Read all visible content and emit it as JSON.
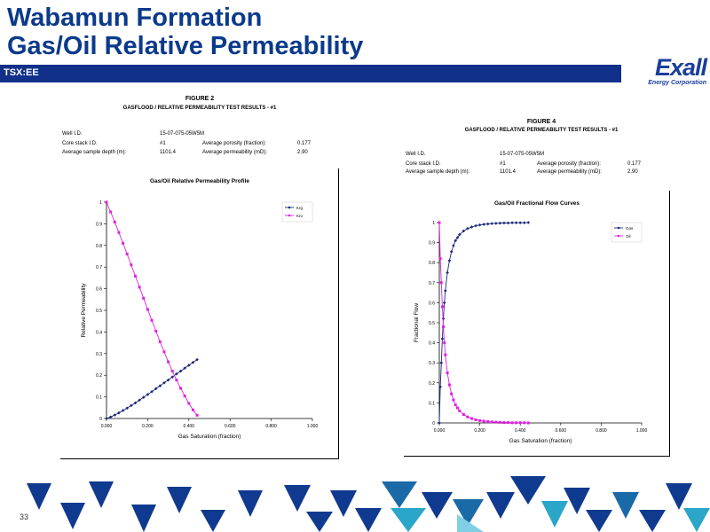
{
  "slide": {
    "title_line1": "Wabamun Formation",
    "title_line2": "Gas/Oil Relative Permeability",
    "ticker": "TSX:EE",
    "logo_main": "Exall",
    "logo_sub": "Energy Corporation",
    "page_number": "33"
  },
  "figure2": {
    "figure_label": "FIGURE 2",
    "test_title": "GASFLOOD / RELATIVE PERMEABILITY TEST RESULTS - #1",
    "well_id_label": "Well I.D.",
    "well_id": "15-07-075-05W5M",
    "core_stack_label": "Core stack I.D.",
    "core_stack": "#1",
    "avg_porosity_label": "Average porosity (fraction):",
    "avg_porosity": "0.177",
    "avg_depth_label": "Average sample depth (m):",
    "avg_depth": "1101.4",
    "avg_perm_label": "Average permeability (mD):",
    "avg_perm": "2.90"
  },
  "figure4": {
    "figure_label": "FIGURE 4",
    "test_title": "GASFLOOD / RELATIVE PERMEABILITY TEST RESULTS - #1",
    "well_id_label": "Well I.D.",
    "well_id": "15-07-075-05W5M",
    "core_stack_label": "Core stack I.D.",
    "core_stack": "#1",
    "avg_porosity_label": "Average porosity (fraction):",
    "avg_porosity": "0.177",
    "avg_depth_label": "Average sample depth (m):",
    "avg_depth": "1101.4",
    "avg_perm_label": "Average permeability (mD):",
    "avg_perm": "2.90"
  },
  "chart_data": [
    {
      "type": "line",
      "title": "Gas/Oil Relative Permeability Profile",
      "xlabel": "Gas Saturation (fraction)",
      "ylabel": "Relative Permeability",
      "xlim": [
        0,
        1
      ],
      "ylim": [
        0,
        1
      ],
      "x_ticks": [
        "0.000",
        "0.200",
        "0.400",
        "0.600",
        "0.800",
        "1.000"
      ],
      "y_ticks": [
        "0",
        "0.1",
        "0.2",
        "0.3",
        "0.4",
        "0.5",
        "0.6",
        "0.7",
        "0.8",
        "0.9",
        "1"
      ],
      "legend_position": "top-right",
      "grid": false,
      "series": [
        {
          "name": "Krg",
          "color": "#1c2a7a",
          "x": [
            0.0,
            0.02,
            0.04,
            0.06,
            0.08,
            0.1,
            0.12,
            0.14,
            0.16,
            0.18,
            0.2,
            0.22,
            0.24,
            0.26,
            0.28,
            0.3,
            0.32,
            0.34,
            0.36,
            0.38,
            0.4,
            0.42,
            0.44
          ],
          "y": [
            0.0,
            0.007,
            0.016,
            0.026,
            0.037,
            0.048,
            0.06,
            0.072,
            0.085,
            0.098,
            0.111,
            0.124,
            0.138,
            0.151,
            0.165,
            0.178,
            0.192,
            0.206,
            0.219,
            0.233,
            0.246,
            0.259,
            0.272
          ]
        },
        {
          "name": "Kro",
          "color": "#e020e0",
          "x": [
            0.0,
            0.02,
            0.04,
            0.06,
            0.08,
            0.1,
            0.12,
            0.14,
            0.16,
            0.18,
            0.2,
            0.22,
            0.24,
            0.26,
            0.28,
            0.3,
            0.32,
            0.34,
            0.36,
            0.38,
            0.4,
            0.42,
            0.44
          ],
          "y": [
            1.0,
            0.955,
            0.908,
            0.86,
            0.81,
            0.76,
            0.71,
            0.658,
            0.607,
            0.556,
            0.504,
            0.454,
            0.404,
            0.355,
            0.308,
            0.262,
            0.219,
            0.178,
            0.14,
            0.104,
            0.07,
            0.04,
            0.015
          ]
        }
      ]
    },
    {
      "type": "line",
      "title": "Gas/Oil Fractional Flow Curves",
      "xlabel": "Gas Saturation (fraction)",
      "ylabel": "Fractional Flow",
      "xlim": [
        0,
        1
      ],
      "ylim": [
        0,
        1
      ],
      "x_ticks": [
        "0.000",
        "0.200",
        "0.400",
        "0.600",
        "0.800",
        "1.000"
      ],
      "y_ticks": [
        "0",
        "0.1",
        "0.2",
        "0.3",
        "0.4",
        "0.5",
        "0.6",
        "0.7",
        "0.8",
        "0.9",
        "1"
      ],
      "legend_position": "top-right",
      "grid": false,
      "series": [
        {
          "name": "Gas",
          "color": "#1c2a7a",
          "x": [
            0.0,
            0.005,
            0.01,
            0.015,
            0.02,
            0.025,
            0.03,
            0.04,
            0.05,
            0.06,
            0.07,
            0.08,
            0.09,
            0.1,
            0.12,
            0.14,
            0.16,
            0.18,
            0.2,
            0.22,
            0.24,
            0.26,
            0.28,
            0.3,
            0.32,
            0.34,
            0.36,
            0.38,
            0.4,
            0.42,
            0.44
          ],
          "y": [
            0.0,
            0.18,
            0.3,
            0.42,
            0.52,
            0.6,
            0.66,
            0.75,
            0.81,
            0.855,
            0.885,
            0.91,
            0.925,
            0.94,
            0.958,
            0.97,
            0.978,
            0.984,
            0.988,
            0.991,
            0.993,
            0.995,
            0.996,
            0.997,
            0.998,
            0.998,
            0.999,
            0.999,
            0.999,
            0.999,
            1.0
          ]
        },
        {
          "name": "Oil",
          "color": "#e020e0",
          "x": [
            0.0,
            0.005,
            0.01,
            0.015,
            0.02,
            0.025,
            0.03,
            0.04,
            0.05,
            0.06,
            0.07,
            0.08,
            0.09,
            0.1,
            0.12,
            0.14,
            0.16,
            0.18,
            0.2,
            0.22,
            0.24,
            0.26,
            0.28,
            0.3,
            0.32,
            0.34,
            0.36,
            0.38,
            0.4,
            0.42,
            0.44
          ],
          "y": [
            1.0,
            0.82,
            0.7,
            0.58,
            0.48,
            0.4,
            0.34,
            0.25,
            0.19,
            0.145,
            0.115,
            0.09,
            0.075,
            0.06,
            0.042,
            0.03,
            0.022,
            0.016,
            0.012,
            0.009,
            0.007,
            0.005,
            0.004,
            0.003,
            0.002,
            0.002,
            0.001,
            0.001,
            0.001,
            0.001,
            0.0
          ]
        }
      ]
    }
  ]
}
